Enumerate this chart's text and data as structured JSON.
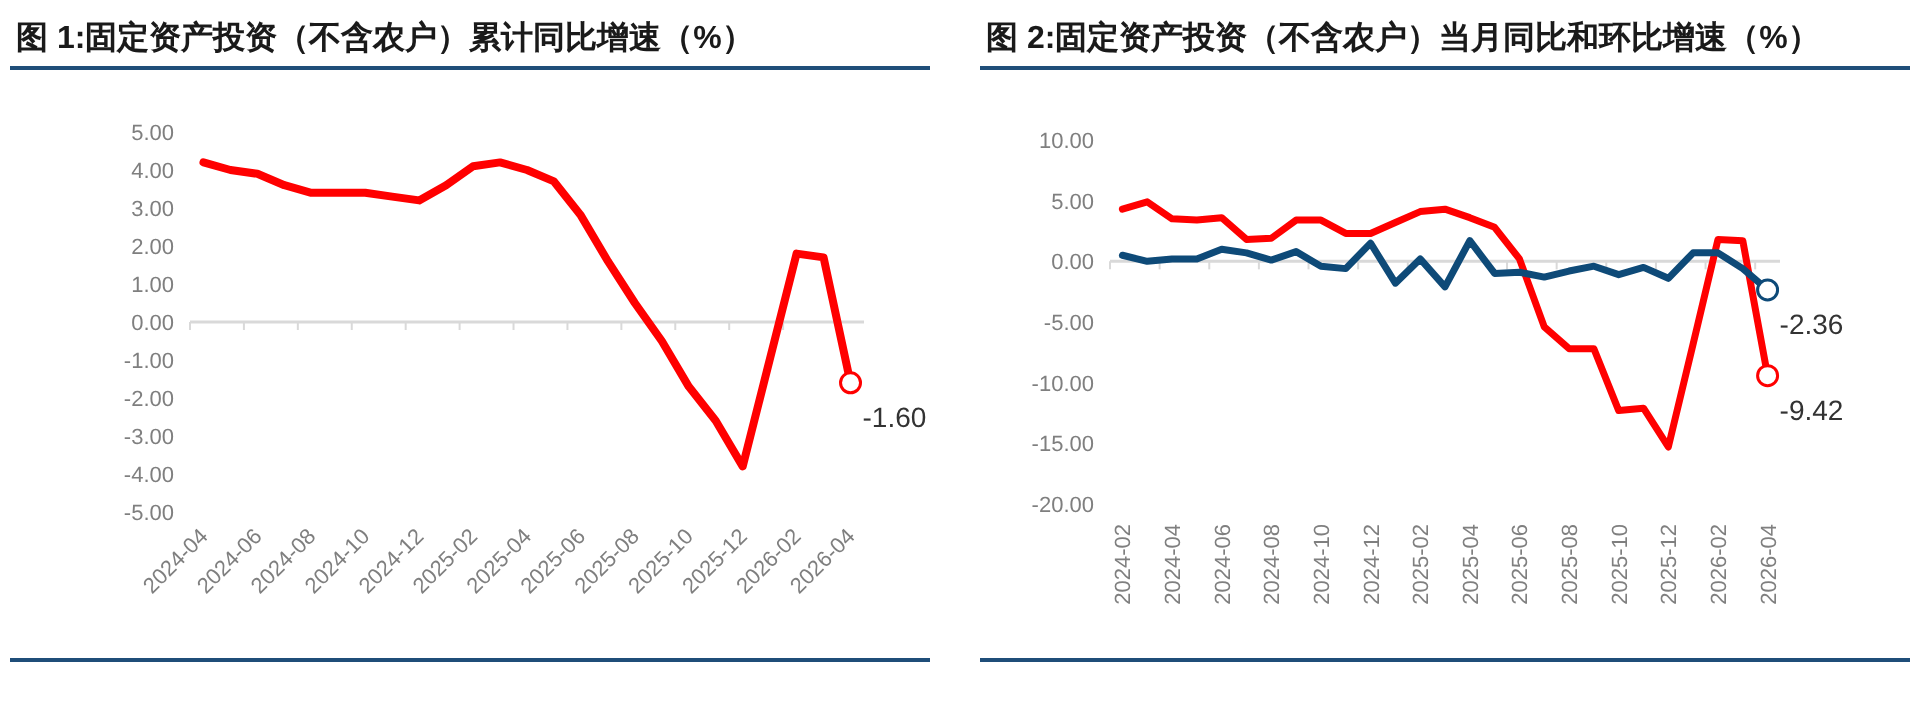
{
  "chart_data": [
    {
      "type": "line",
      "title": "图 1:固定资产投资（不含农户）累计同比增速（%）",
      "categories": [
        "2024-04",
        null,
        "2024-06",
        null,
        "2024-08",
        null,
        "2024-10",
        null,
        "2024-12",
        null,
        "2025-02",
        null,
        "2025-04",
        null,
        "2025-06",
        null,
        "2025-08",
        null,
        "2025-10",
        null,
        "2025-12",
        null,
        "2026-02",
        null,
        "2026-04"
      ],
      "series": [
        {
          "color": "#ff0000",
          "values": [
            4.2,
            4.0,
            3.9,
            3.6,
            3.4,
            3.4,
            3.4,
            3.3,
            3.2,
            3.6,
            4.1,
            4.2,
            4.0,
            3.7,
            2.8,
            1.6,
            0.5,
            -0.5,
            -1.7,
            -2.6,
            -3.8,
            -1.0,
            1.8,
            1.7,
            -1.6
          ],
          "value_labels": [
            null,
            null,
            null,
            null,
            null,
            null,
            null,
            null,
            null,
            null,
            null,
            null,
            null,
            null,
            null,
            null,
            null,
            null,
            null,
            null,
            null,
            null,
            null,
            null,
            "-1.60"
          ]
        }
      ],
      "ylim": [
        -5,
        5
      ],
      "yticks": [
        {
          "value": -5,
          "label": "-5.00"
        },
        {
          "value": -4,
          "label": "-4.00"
        },
        {
          "value": -3,
          "label": "-3.00"
        },
        {
          "value": -2,
          "label": "-2.00"
        },
        {
          "value": -1,
          "label": "-1.00"
        },
        {
          "value": 0,
          "label": "0.00"
        },
        {
          "value": 1,
          "label": "1.00"
        },
        {
          "value": 2,
          "label": "2.00"
        },
        {
          "value": 3,
          "label": "3.00"
        },
        {
          "value": 4,
          "label": "4.00"
        },
        {
          "value": 5,
          "label": "5.00"
        }
      ]
    },
    {
      "type": "line",
      "title": "图 2:固定资产投资（不含农户）当月同比和环比增速（%）",
      "categories": [
        "2024-02",
        null,
        "2024-04",
        null,
        "2024-06",
        null,
        "2024-08",
        null,
        "2024-10",
        null,
        "2024-12",
        null,
        "2025-02",
        null,
        "2025-04",
        null,
        "2025-06",
        null,
        "2025-08",
        null,
        "2025-10",
        null,
        "2025-12",
        null,
        "2026-02",
        null,
        "2026-04"
      ],
      "series": [
        {
          "color": "#ff0000",
          "values": [
            4.3,
            4.9,
            3.5,
            3.4,
            3.6,
            1.8,
            1.9,
            3.4,
            3.4,
            2.3,
            2.3,
            3.2,
            4.1,
            4.3,
            3.6,
            2.8,
            0.2,
            -5.4,
            -7.2,
            -7.2,
            -12.3,
            -12.1,
            -15.3,
            -6.8,
            1.8,
            1.7,
            -9.42
          ],
          "value_labels": [
            null,
            null,
            null,
            null,
            null,
            null,
            null,
            null,
            null,
            null,
            null,
            null,
            null,
            null,
            null,
            null,
            null,
            null,
            null,
            null,
            null,
            null,
            null,
            null,
            null,
            null,
            "-9.42"
          ]
        },
        {
          "color": "#0e4a78",
          "values": [
            0.5,
            0.0,
            0.2,
            0.2,
            1.0,
            0.7,
            0.1,
            0.8,
            -0.4,
            -0.6,
            1.5,
            -1.8,
            0.2,
            -2.1,
            1.7,
            -1.0,
            -0.9,
            -1.3,
            -0.8,
            -0.4,
            -1.1,
            -0.5,
            -1.4,
            0.7,
            0.7,
            -0.6,
            -2.36
          ],
          "value_labels": [
            null,
            null,
            null,
            null,
            null,
            null,
            null,
            null,
            null,
            null,
            null,
            null,
            null,
            null,
            null,
            null,
            null,
            null,
            null,
            null,
            null,
            null,
            null,
            null,
            null,
            null,
            "-2.36"
          ]
        }
      ],
      "ylim": [
        -20,
        10
      ],
      "yticks": [
        {
          "value": -20,
          "label": "-20.00"
        },
        {
          "value": -15,
          "label": "-15.00"
        },
        {
          "value": -10,
          "label": "-10.00"
        },
        {
          "value": -5,
          "label": "-5.00"
        },
        {
          "value": 0,
          "label": "0.00"
        },
        {
          "value": 5,
          "label": "5.00"
        },
        {
          "value": 10,
          "label": "10.00"
        }
      ]
    }
  ]
}
